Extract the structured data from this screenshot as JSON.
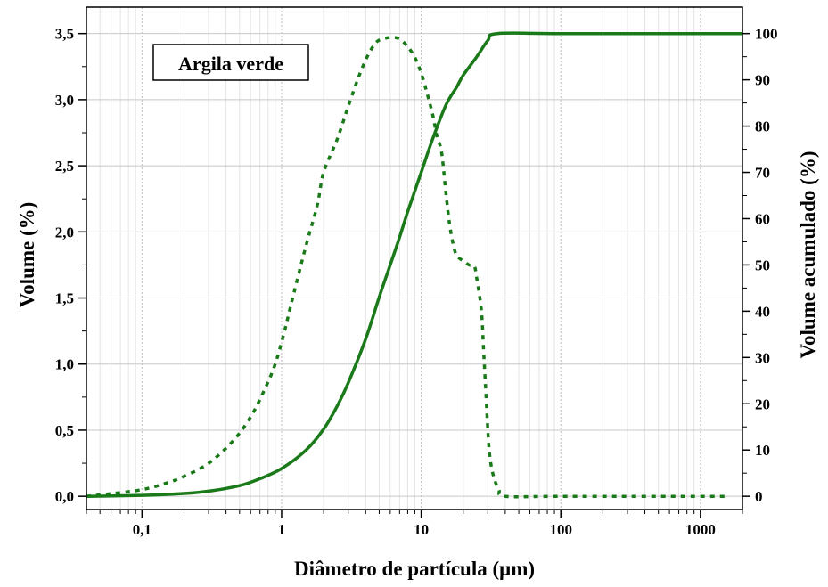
{
  "chart_data": {
    "type": "line",
    "annotation": "Argila verde",
    "xlabel": "Diâmetro de partícula (μm)",
    "ylabel_left": "Volume (%)",
    "ylabel_right": "Volume acumulado (%)",
    "x_scale": "log",
    "xlim": [
      0.04,
      2000
    ],
    "ylim_left": [
      -0.1,
      3.7
    ],
    "ylim_right": [
      -2.857,
      105.714
    ],
    "grid": true,
    "x_ticks": [
      {
        "value": 0.1,
        "label": "0,1"
      },
      {
        "value": 1,
        "label": "1"
      },
      {
        "value": 10,
        "label": "10"
      },
      {
        "value": 100,
        "label": "100"
      },
      {
        "value": 1000,
        "label": "1000"
      }
    ],
    "y_left_ticks": [
      {
        "value": 0,
        "label": "0,0"
      },
      {
        "value": 0.5,
        "label": "0,5"
      },
      {
        "value": 1.0,
        "label": "1,0"
      },
      {
        "value": 1.5,
        "label": "1,5"
      },
      {
        "value": 2.0,
        "label": "2,0"
      },
      {
        "value": 2.5,
        "label": "2,5"
      },
      {
        "value": 3.0,
        "label": "3,0"
      },
      {
        "value": 3.5,
        "label": "3,5"
      }
    ],
    "y_right_ticks": [
      {
        "value": 0,
        "label": "0"
      },
      {
        "value": 10,
        "label": "10"
      },
      {
        "value": 20,
        "label": "20"
      },
      {
        "value": 30,
        "label": "30"
      },
      {
        "value": 40,
        "label": "40"
      },
      {
        "value": 50,
        "label": "50"
      },
      {
        "value": 60,
        "label": "60"
      },
      {
        "value": 70,
        "label": "70"
      },
      {
        "value": 80,
        "label": "80"
      },
      {
        "value": 90,
        "label": "90"
      },
      {
        "value": 100,
        "label": "100"
      }
    ],
    "series": [
      {
        "axis": "left",
        "style": "dotted",
        "color": "#1a7a1a",
        "points": [
          [
            0.04,
            0.0
          ],
          [
            0.06,
            0.02
          ],
          [
            0.1,
            0.05
          ],
          [
            0.15,
            0.1
          ],
          [
            0.2,
            0.15
          ],
          [
            0.3,
            0.25
          ],
          [
            0.45,
            0.42
          ],
          [
            0.6,
            0.6
          ],
          [
            0.75,
            0.8
          ],
          [
            0.9,
            1.0
          ],
          [
            1.05,
            1.25
          ],
          [
            1.2,
            1.5
          ],
          [
            1.5,
            1.9
          ],
          [
            1.8,
            2.2
          ],
          [
            2.0,
            2.45
          ],
          [
            2.5,
            2.7
          ],
          [
            3.0,
            2.95
          ],
          [
            3.5,
            3.15
          ],
          [
            4.0,
            3.3
          ],
          [
            4.5,
            3.4
          ],
          [
            5.0,
            3.45
          ],
          [
            6.0,
            3.47
          ],
          [
            7.0,
            3.46
          ],
          [
            8.0,
            3.4
          ],
          [
            9.0,
            3.32
          ],
          [
            10.0,
            3.2
          ],
          [
            11.0,
            3.05
          ],
          [
            12.0,
            2.9
          ],
          [
            13.0,
            2.72
          ],
          [
            14.0,
            2.6
          ],
          [
            15.0,
            2.3
          ],
          [
            16.0,
            2.05
          ],
          [
            17.0,
            1.9
          ],
          [
            18.0,
            1.82
          ],
          [
            20.0,
            1.78
          ],
          [
            22.0,
            1.75
          ],
          [
            24.0,
            1.74
          ],
          [
            25.0,
            1.65
          ],
          [
            27.0,
            1.4
          ],
          [
            28.0,
            1.1
          ],
          [
            29.0,
            0.8
          ],
          [
            30.0,
            0.5
          ],
          [
            31.0,
            0.3
          ],
          [
            33.0,
            0.15
          ],
          [
            36.0,
            0.05
          ],
          [
            40.0,
            0.0
          ],
          [
            100,
            0.0
          ],
          [
            1000,
            0.0
          ],
          [
            1600,
            0.0
          ]
        ]
      },
      {
        "axis": "right",
        "style": "solid",
        "color": "#1a7a1a",
        "points": [
          [
            0.04,
            0.0
          ],
          [
            0.1,
            0.2
          ],
          [
            0.2,
            0.6
          ],
          [
            0.3,
            1.1
          ],
          [
            0.5,
            2.3
          ],
          [
            0.7,
            3.8
          ],
          [
            1.0,
            6.0
          ],
          [
            1.5,
            10.0
          ],
          [
            2.0,
            14.5
          ],
          [
            2.5,
            19.5
          ],
          [
            3.0,
            24.5
          ],
          [
            4.0,
            34.0
          ],
          [
            5.0,
            43.0
          ],
          [
            6.0,
            50.0
          ],
          [
            7.0,
            56.0
          ],
          [
            8.0,
            61.5
          ],
          [
            10.0,
            70.0
          ],
          [
            12.0,
            77.0
          ],
          [
            15.0,
            84.5
          ],
          [
            18.0,
            88.5
          ],
          [
            20.0,
            91.0
          ],
          [
            25.0,
            95.0
          ],
          [
            30.0,
            98.5
          ],
          [
            35.0,
            100.0
          ],
          [
            100,
            100.0
          ],
          [
            1000,
            100.0
          ],
          [
            2000,
            100.0
          ]
        ]
      }
    ]
  }
}
